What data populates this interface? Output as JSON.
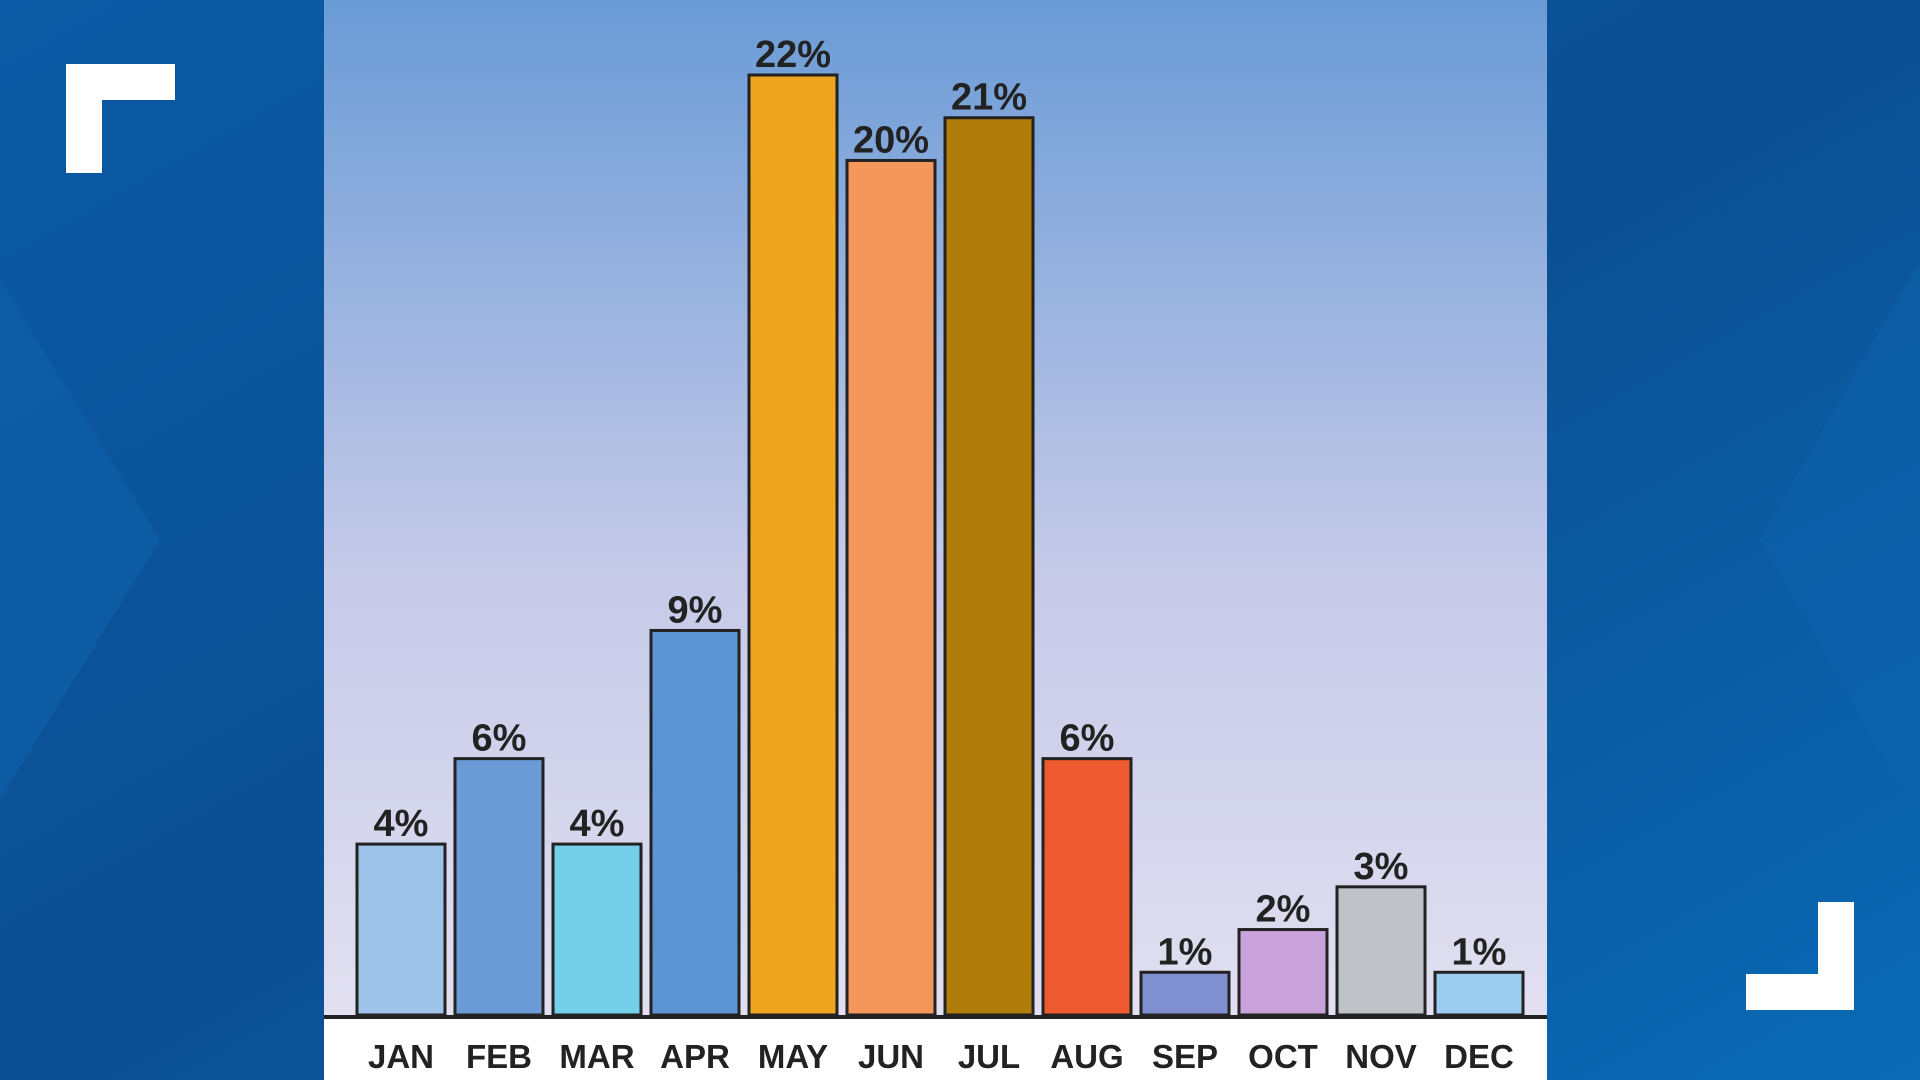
{
  "chart_data": {
    "type": "bar",
    "categories": [
      "JAN",
      "FEB",
      "MAR",
      "APR",
      "MAY",
      "JUN",
      "JUL",
      "AUG",
      "SEP",
      "OCT",
      "NOV",
      "DEC"
    ],
    "values": [
      4,
      6,
      4,
      9,
      22,
      20,
      21,
      6,
      1,
      2,
      3,
      1
    ],
    "value_labels": [
      "4%",
      "6%",
      "4%",
      "9%",
      "22%",
      "20%",
      "21%",
      "6%",
      "1%",
      "2%",
      "3%",
      "1%"
    ],
    "colors": [
      "#9dc3e8",
      "#6a9bd6",
      "#74d0e8",
      "#5d95d4",
      "#f0a520",
      "#f4975a",
      "#b07c0a",
      "#ee5a30",
      "#7f8fd0",
      "#c9a2dc",
      "#bfc3c7",
      "#9ccdf0"
    ]
  }
}
